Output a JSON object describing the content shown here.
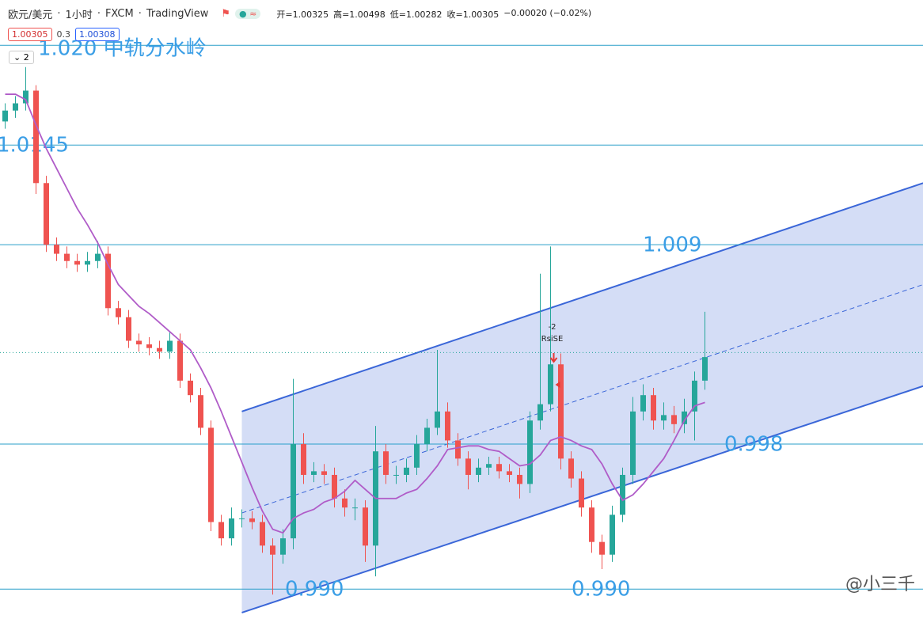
{
  "header": {
    "symbol": "欧元/美元",
    "interval": "1小时",
    "exchange": "FXCM",
    "source": "TradingView",
    "ohlc": [
      "开=1.00325",
      "高=1.00498",
      "低=1.00282",
      "收=1.00305",
      "−0.00020 (−0.02%)"
    ],
    "spread": "0.3",
    "ask": "1.00308",
    "collapse": "2"
  },
  "watermark": "@小三千",
  "chart_data": {
    "type": "candlestick",
    "ylim": [
      0.98835,
      1.0225
    ],
    "up_color": "#26a69a",
    "down_color": "#ef5350",
    "open": [
      1.0158,
      1.0164,
      1.0168,
      1.0175,
      1.0124,
      1.009,
      1.0085,
      1.0081,
      1.0079,
      1.0081,
      1.0085,
      1.0055,
      1.005,
      1.0037,
      1.0035,
      1.0033,
      1.0031,
      1.0037,
      1.0015,
      1.0007,
      0.9989,
      0.9937,
      0.9928,
      0.9939,
      0.9939,
      0.9937,
      0.9924,
      0.9919,
      0.9928,
      0.998,
      0.9963,
      0.9965,
      0.9963,
      0.995,
      0.9945,
      0.9945,
      0.9924,
      0.9976,
      0.9963,
      0.9963,
      0.9967,
      0.998,
      0.9989,
      0.9998,
      0.9982,
      0.9972,
      0.9963,
      0.9967,
      0.9969,
      0.9965,
      0.9963,
      0.9958,
      0.9993,
      1.0002,
      1.0024,
      0.9972,
      0.9961,
      0.9945,
      0.9926,
      0.9919,
      0.9941,
      0.9963,
      0.9998,
      1.0007,
      0.9993,
      0.9996,
      0.9991,
      0.9998,
      1.0015
    ],
    "high": [
      1.0168,
      1.0172,
      1.0188,
      1.0178,
      1.0128,
      1.0094,
      1.0089,
      1.0085,
      1.0086,
      1.0092,
      1.0089,
      1.0059,
      1.0054,
      1.0041,
      1.0039,
      1.0037,
      1.0042,
      1.0041,
      1.0019,
      1.0011,
      0.9993,
      0.9941,
      0.9945,
      0.9944,
      0.9943,
      0.9941,
      0.9928,
      0.9933,
      1.0016,
      0.9986,
      0.997,
      0.9969,
      0.9967,
      0.9955,
      0.995,
      0.9949,
      0.999,
      0.998,
      0.9968,
      0.9972,
      0.9985,
      0.9994,
      1.0032,
      1.0003,
      0.9986,
      0.9976,
      0.9972,
      0.9973,
      0.9973,
      0.9969,
      0.9967,
      0.9998,
      1.0074,
      1.0089,
      1.003,
      0.9976,
      0.9965,
      0.9949,
      0.993,
      0.9946,
      0.9967,
      1.0006,
      1.0013,
      1.0011,
      1.0003,
      1.0001,
      1.0005,
      1.002,
      1.0053
    ],
    "low": [
      1.0154,
      1.016,
      1.0164,
      1.0118,
      1.0086,
      1.0081,
      1.0077,
      1.0075,
      1.0075,
      1.0077,
      1.0051,
      1.0046,
      1.0033,
      1.0031,
      1.0029,
      1.0027,
      1.0027,
      1.0011,
      1.0003,
      0.9985,
      0.9932,
      0.9924,
      0.9924,
      0.9934,
      0.9933,
      0.992,
      0.9897,
      0.9914,
      0.9922,
      0.9958,
      0.9959,
      0.9958,
      0.9945,
      0.994,
      0.9938,
      0.9915,
      0.9907,
      0.9958,
      0.9958,
      0.9959,
      0.9963,
      0.9976,
      0.9985,
      0.9978,
      0.9968,
      0.9955,
      0.9959,
      0.9963,
      0.9961,
      0.9959,
      0.995,
      0.9953,
      0.9988,
      0.9998,
      0.9966,
      0.9956,
      0.994,
      0.992,
      0.9911,
      0.9915,
      0.9937,
      0.9958,
      0.9993,
      0.9988,
      0.9988,
      0.9986,
      0.9986,
      0.9982,
      1.001
    ],
    "close": [
      1.0164,
      1.0168,
      1.0175,
      1.0124,
      1.009,
      1.0085,
      1.0081,
      1.0079,
      1.0081,
      1.0085,
      1.0055,
      1.005,
      1.0037,
      1.0035,
      1.0033,
      1.0031,
      1.0037,
      1.0015,
      1.0007,
      0.9989,
      0.9937,
      0.9928,
      0.9939,
      0.9939,
      0.9937,
      0.9924,
      0.9919,
      0.9928,
      0.998,
      0.9963,
      0.9965,
      0.9963,
      0.995,
      0.9945,
      0.9945,
      0.9924,
      0.9976,
      0.9963,
      0.9963,
      0.9967,
      0.998,
      0.9989,
      0.9998,
      0.9982,
      0.9972,
      0.9963,
      0.9967,
      0.9969,
      0.9965,
      0.9963,
      0.9958,
      0.9993,
      1.0002,
      1.0024,
      0.9972,
      0.9961,
      0.9945,
      0.9926,
      0.9919,
      0.9941,
      0.9963,
      0.9998,
      1.0007,
      0.9993,
      0.9996,
      0.9991,
      0.9998,
      1.0015,
      1.0028
    ],
    "ma": {
      "color": "#b05cc8",
      "values": [
        1.0173,
        1.0173,
        1.017,
        1.0156,
        1.0143,
        1.0132,
        1.0121,
        1.011,
        1.0101,
        1.0091,
        1.0079,
        1.0068,
        1.0062,
        1.0056,
        1.0052,
        1.0047,
        1.0042,
        1.0037,
        1.0032,
        1.0022,
        1.0011,
        0.9998,
        0.9984,
        0.997,
        0.9956,
        0.9943,
        0.9933,
        0.9931,
        0.9939,
        0.9942,
        0.9944,
        0.9948,
        0.995,
        0.9954,
        0.996,
        0.9955,
        0.995,
        0.995,
        0.995,
        0.9953,
        0.9955,
        0.9961,
        0.9968,
        0.9977,
        0.9978,
        0.9979,
        0.9979,
        0.9977,
        0.9976,
        0.9972,
        0.9968,
        0.9969,
        0.9974,
        0.9982,
        0.9984,
        0.9982,
        0.9979,
        0.9977,
        0.9969,
        0.9958,
        0.9949,
        0.9952,
        0.9958,
        0.9965,
        0.9972,
        0.9982,
        0.9993,
        1.0001,
        1.0003
      ]
    },
    "channel": {
      "color": "#3a66d8",
      "x": [
        23,
        89.2
      ],
      "upper": [
        0.9998,
        1.0124
      ],
      "middle": [
        0.9942,
        1.0068
      ],
      "lower": [
        0.9887,
        1.0012
      ]
    },
    "level_color": "#2a9fc9",
    "levels": [
      {
        "value": 1.02,
        "labels": [
          "1.020 中轨分水岭"
        ]
      },
      {
        "value": 1.0145,
        "labels": [
          "1.0145"
        ]
      },
      {
        "value": 1.009,
        "labels": [
          "1.009"
        ]
      },
      {
        "value": 0.998,
        "labels": [
          "0.998"
        ]
      },
      {
        "value": 0.99,
        "labels": [
          "0.990",
          "0.990"
        ]
      }
    ],
    "last_price": {
      "value": 1.00305,
      "label": "1.00305"
    },
    "signal": {
      "count": "-2",
      "text": "RsiSE"
    }
  }
}
